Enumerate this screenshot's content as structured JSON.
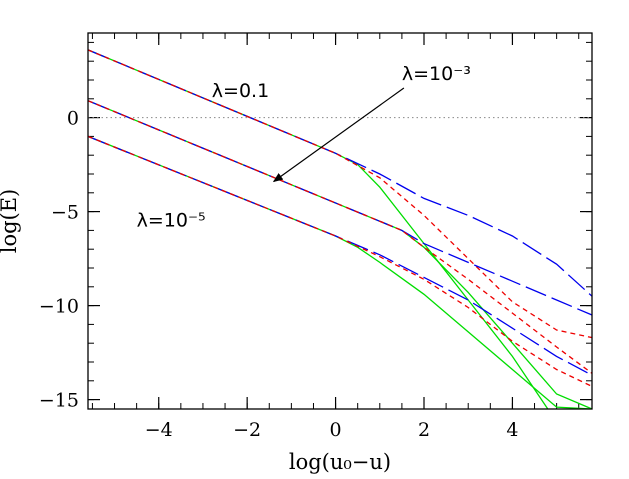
{
  "chart_data": {
    "type": "line",
    "xlabel": "log(u₀−u)",
    "ylabel": "log(E)",
    "xlim": [
      -5.6,
      5.8
    ],
    "ylim": [
      -15.5,
      4.5
    ],
    "xticks": [
      -4,
      -2,
      0,
      2,
      4
    ],
    "yticks": [
      0,
      -5,
      -10,
      -15
    ],
    "minor_x_step": 0.5,
    "minor_y_step": 1,
    "reference_line": {
      "y": 0,
      "style": "dotted",
      "color": "#888888"
    },
    "annotations": [
      {
        "text": "λ=0.1",
        "x": -2.8,
        "y": 1.1
      },
      {
        "text": "λ=10⁻³",
        "x": 1.5,
        "y": 2.0,
        "arrow_to": [
          -1.4,
          -3.4
        ]
      },
      {
        "text": "λ=10⁻⁵",
        "x": -4.5,
        "y": -5.8
      }
    ],
    "series": [
      {
        "group": "0.1",
        "style": "solid",
        "color": "#00dd00",
        "x": [
          -5.6,
          0,
          0.5,
          1.0,
          2.0,
          3.0,
          4.0,
          4.8
        ],
        "y": [
          3.6,
          -1.9,
          -2.5,
          -3.7,
          -6.7,
          -9.7,
          -12.7,
          -15.5
        ]
      },
      {
        "group": "0.1",
        "style": "long-dash",
        "color": "#0000ee",
        "x": [
          -5.6,
          0,
          1,
          2,
          3,
          4,
          5,
          5.8
        ],
        "y": [
          3.6,
          -1.9,
          -3.0,
          -4.3,
          -5.2,
          -6.3,
          -7.8,
          -9.5
        ]
      },
      {
        "group": "0.1",
        "style": "short-dash",
        "color": "#ee0000",
        "x": [
          -5.6,
          0,
          1,
          2,
          3,
          4,
          5,
          5.8
        ],
        "y": [
          3.6,
          -1.9,
          -3.2,
          -5.2,
          -7.5,
          -9.8,
          -11.3,
          -11.7
        ]
      },
      {
        "group": "1e-3",
        "style": "solid",
        "color": "#00dd00",
        "x": [
          -5.6,
          1.5,
          2.0,
          3.0,
          4.0,
          5.0,
          5.8
        ],
        "y": [
          0.9,
          -6.0,
          -6.9,
          -9.3,
          -12.0,
          -14.7,
          -15.5
        ]
      },
      {
        "group": "1e-3",
        "style": "long-dash",
        "color": "#0000ee",
        "x": [
          -5.6,
          1.5,
          2,
          3,
          4,
          5,
          5.8
        ],
        "y": [
          0.9,
          -6.0,
          -6.7,
          -7.7,
          -8.7,
          -9.7,
          -10.5
        ]
      },
      {
        "group": "1e-3",
        "style": "short-dash",
        "color": "#ee0000",
        "x": [
          -5.6,
          1.5,
          2,
          3,
          4,
          5,
          5.8
        ],
        "y": [
          0.9,
          -6.0,
          -6.9,
          -8.6,
          -10.4,
          -12.2,
          -13.6
        ]
      },
      {
        "group": "1e-5",
        "style": "solid",
        "color": "#00dd00",
        "x": [
          -5.6,
          0,
          0.5,
          1.0,
          2.0,
          3.0,
          4.0,
          5.0,
          5.8
        ],
        "y": [
          -1.0,
          -6.3,
          -6.9,
          -7.7,
          -9.4,
          -11.4,
          -13.4,
          -15.4,
          -15.5
        ]
      },
      {
        "group": "1e-5",
        "style": "long-dash",
        "color": "#0000ee",
        "x": [
          -5.6,
          0,
          1,
          2,
          3,
          4,
          5,
          5.8
        ],
        "y": [
          -1.0,
          -6.3,
          -7.3,
          -8.5,
          -9.7,
          -11.2,
          -12.7,
          -13.7
        ]
      },
      {
        "group": "1e-5",
        "style": "short-dash",
        "color": "#ee0000",
        "x": [
          -5.6,
          0,
          1,
          2,
          3,
          4,
          5,
          5.8
        ],
        "y": [
          -1.0,
          -6.3,
          -7.4,
          -8.6,
          -10.1,
          -11.9,
          -13.4,
          -14.3
        ]
      }
    ]
  }
}
